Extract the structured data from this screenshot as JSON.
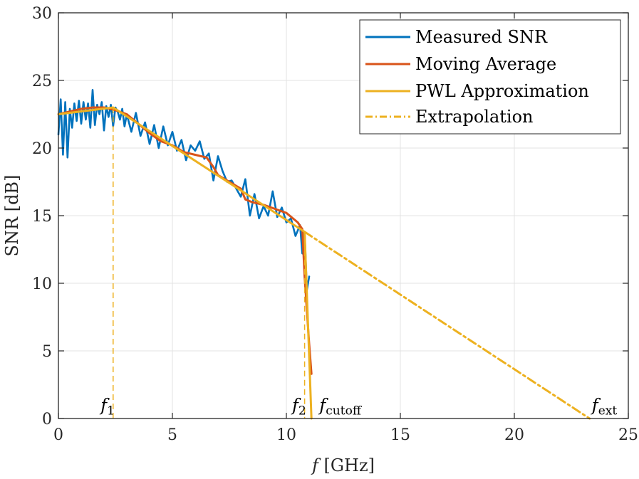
{
  "chart_data": {
    "type": "line",
    "title": "",
    "xlabel": "f [GHz]",
    "ylabel": "SNR [dB]",
    "xlim": [
      0,
      25
    ],
    "ylim": [
      0,
      30
    ],
    "xticks": [
      0,
      5,
      10,
      15,
      20,
      25
    ],
    "yticks": [
      0,
      5,
      10,
      15,
      20,
      25,
      30
    ],
    "grid": true,
    "legend_position": "top-right",
    "series": [
      {
        "name": "Measured SNR",
        "color": "#0072BD",
        "style": "solid",
        "x": [
          0.0,
          0.1,
          0.2,
          0.3,
          0.4,
          0.5,
          0.6,
          0.7,
          0.8,
          0.9,
          1.0,
          1.1,
          1.2,
          1.3,
          1.4,
          1.5,
          1.6,
          1.7,
          1.8,
          1.9,
          2.0,
          2.1,
          2.2,
          2.3,
          2.4,
          2.5,
          2.6,
          2.7,
          2.8,
          2.9,
          3.0,
          3.2,
          3.4,
          3.6,
          3.8,
          4.0,
          4.2,
          4.4,
          4.6,
          4.8,
          5.0,
          5.2,
          5.4,
          5.6,
          5.8,
          6.0,
          6.2,
          6.4,
          6.6,
          6.8,
          7.0,
          7.2,
          7.4,
          7.6,
          7.8,
          8.0,
          8.2,
          8.4,
          8.6,
          8.8,
          9.0,
          9.2,
          9.4,
          9.6,
          9.8,
          10.0,
          10.2,
          10.4,
          10.6,
          10.7,
          10.8,
          10.9,
          11.0
        ],
        "values": [
          21.0,
          23.6,
          19.5,
          23.4,
          19.3,
          22.9,
          21.5,
          23.3,
          22.0,
          23.5,
          21.8,
          23.4,
          22.1,
          23.3,
          21.5,
          24.3,
          21.7,
          23.2,
          22.5,
          23.4,
          21.3,
          23.1,
          22.3,
          23.2,
          21.6,
          23.0,
          22.7,
          22.1,
          22.9,
          21.6,
          22.5,
          21.2,
          22.6,
          20.9,
          21.9,
          20.3,
          21.7,
          20.0,
          21.6,
          20.2,
          21.2,
          19.8,
          20.6,
          19.1,
          20.2,
          19.8,
          20.5,
          19.2,
          19.6,
          17.6,
          19.4,
          18.3,
          17.5,
          17.6,
          17.0,
          16.4,
          17.7,
          15.0,
          16.6,
          14.8,
          15.7,
          15.0,
          16.8,
          14.9,
          15.6,
          14.5,
          14.8,
          13.5,
          14.3,
          12.2,
          13.8,
          9.5,
          10.5
        ]
      },
      {
        "name": "Moving Average",
        "color": "#D95319",
        "style": "solid",
        "x": [
          0.0,
          0.5,
          1.0,
          1.5,
          2.0,
          2.5,
          3.0,
          3.5,
          4.0,
          4.5,
          5.0,
          5.5,
          6.0,
          6.5,
          6.8,
          7.0,
          7.5,
          8.0,
          8.2,
          8.5,
          9.0,
          9.5,
          10.0,
          10.5,
          10.7,
          10.8,
          10.9,
          11.0,
          11.1
        ],
        "values": [
          22.5,
          22.7,
          22.9,
          23.0,
          23.0,
          22.8,
          22.5,
          21.8,
          21.1,
          20.5,
          20.2,
          19.7,
          19.5,
          19.3,
          18.6,
          18.0,
          17.5,
          17.0,
          16.2,
          16.0,
          15.8,
          15.5,
          15.2,
          14.5,
          14.0,
          10.5,
          8.0,
          5.5,
          3.3
        ]
      },
      {
        "name": "PWL Approximation",
        "color": "#EDB120",
        "style": "solid",
        "x": [
          0.0,
          2.4,
          10.8,
          11.1
        ],
        "values": [
          22.5,
          23.0,
          13.8,
          0.0
        ]
      },
      {
        "name": "Extrapolation",
        "color": "#EDB120",
        "style": "dash-dot",
        "x": [
          10.8,
          23.3
        ],
        "values": [
          13.8,
          0.0
        ]
      }
    ],
    "markers": [
      {
        "label": "f1",
        "x": 2.4,
        "y_top": 23.0
      },
      {
        "label": "f2",
        "x": 10.8,
        "y_top": 13.8
      }
    ],
    "annotations": [
      {
        "base": "f",
        "sub": "1",
        "x": 1.85,
        "y": 0.55
      },
      {
        "base": "f",
        "sub": "2",
        "x": 10.25,
        "y": 0.55
      },
      {
        "base": "f",
        "sub": "cutoff",
        "x": 11.45,
        "y": 0.55
      },
      {
        "base": "f",
        "sub": "ext",
        "x": 23.4,
        "y": 0.55
      }
    ]
  }
}
